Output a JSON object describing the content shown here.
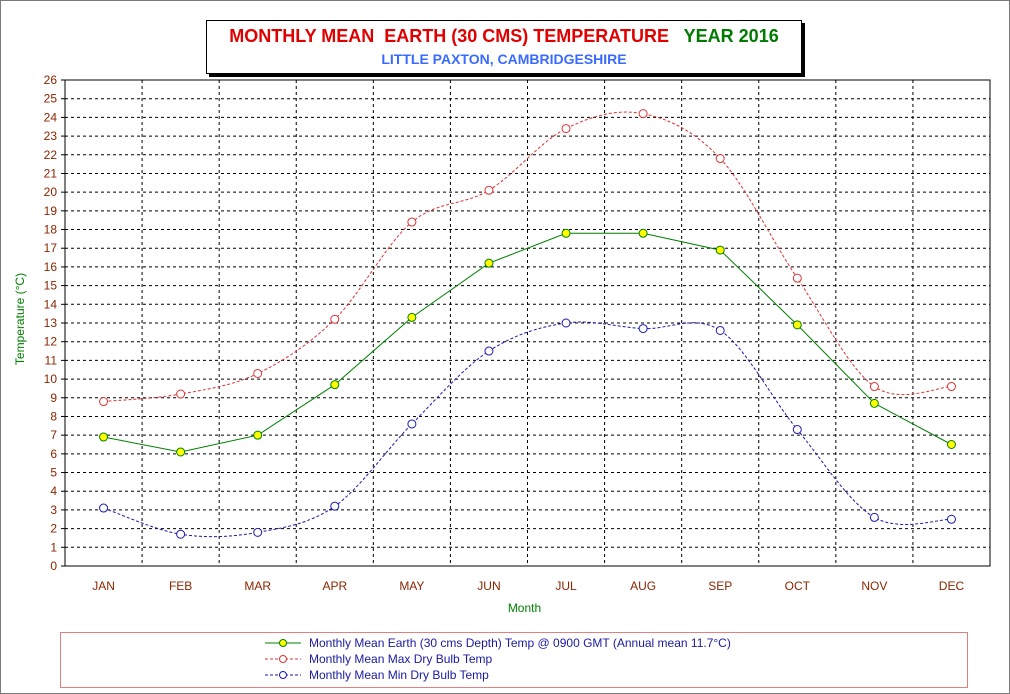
{
  "title": {
    "main": "MONTHLY MEAN  EARTH (30 CMS) TEMPERATURE",
    "year": "YEAR 2016",
    "subtitle": "LITTLE PAXTON, CAMBRIDGESHIRE"
  },
  "colors": {
    "title_red": "#e00000",
    "year_green": "#007a00",
    "subtitle_blue": "#3a6bff",
    "axis_label_green": "#008000",
    "tick_label_brown": "#8b2500",
    "earth_line": "#008000",
    "earth_marker": "#ffff00",
    "max_line": "#dd3333",
    "min_line": "#1a1ab0"
  },
  "chart_data": {
    "type": "line",
    "title": "MONTHLY MEAN  EARTH (30 CMS) TEMPERATURE  YEAR 2016",
    "subtitle": "LITTLE PAXTON, CAMBRIDGESHIRE",
    "xlabel": "Month",
    "ylabel": "Temperature (°C)",
    "ylim": [
      0,
      26
    ],
    "yticks": [
      "0",
      "1",
      "2",
      "3",
      "4",
      "5",
      "6",
      "7",
      "8",
      "9",
      "10",
      "11",
      "12",
      "13",
      "14",
      "15",
      "16",
      "17",
      "18",
      "19",
      "20",
      "21",
      "22",
      "23",
      "24",
      "25",
      "26"
    ],
    "grid": true,
    "legend_position": "bottom",
    "categories": [
      "JAN",
      "FEB",
      "MAR",
      "APR",
      "MAY",
      "JUN",
      "JUL",
      "AUG",
      "SEP",
      "OCT",
      "NOV",
      "DEC"
    ],
    "series": [
      {
        "name": "Monthly Mean Earth (30 cms Depth) Temp @ 0900 GMT (Annual mean 11.7°C)",
        "style": "solid",
        "marker": "filled-circle",
        "values": [
          6.9,
          6.1,
          7.0,
          9.7,
          13.3,
          16.2,
          17.8,
          17.8,
          16.9,
          12.9,
          8.7,
          6.5
        ]
      },
      {
        "name": "Monthly Mean Max Dry Bulb Temp",
        "style": "dashed",
        "marker": "open-circle",
        "values": [
          8.8,
          9.2,
          10.3,
          13.2,
          18.4,
          20.1,
          23.4,
          24.2,
          21.8,
          15.4,
          9.6,
          9.6
        ]
      },
      {
        "name": "Monthly Mean Min Dry Bulb Temp",
        "style": "dashed",
        "marker": "open-circle",
        "values": [
          3.1,
          1.7,
          1.8,
          3.2,
          7.6,
          11.5,
          13.0,
          12.7,
          12.6,
          7.3,
          2.6,
          2.5
        ]
      }
    ]
  }
}
